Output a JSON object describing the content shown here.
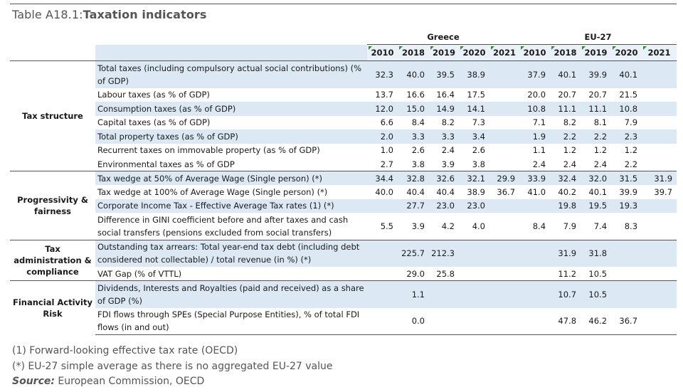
{
  "table_title_prefix": "Table A18.1:",
  "table_title": "Taxation indicators",
  "groups": [
    "Greece",
    "EU-27"
  ],
  "years": [
    "2010",
    "2018",
    "2019",
    "2020",
    "2021",
    "2010",
    "2018",
    "2019",
    "2020",
    "2021"
  ],
  "sections": [
    {
      "label": "Tax structure",
      "rows": [
        {
          "indicator": "Total taxes (including compulsory actual social contributions) (% of GDP)",
          "values": [
            "32.3",
            "40.0",
            "39.5",
            "38.9",
            "",
            "37.9",
            "40.1",
            "39.9",
            "40.1",
            ""
          ]
        },
        {
          "indicator": "Labour taxes (as % of GDP)",
          "values": [
            "13.7",
            "16.6",
            "16.4",
            "17.5",
            "",
            "20.0",
            "20.7",
            "20.7",
            "21.5",
            ""
          ]
        },
        {
          "indicator": "Consumption taxes (as % of GDP)",
          "values": [
            "12.0",
            "15.0",
            "14.9",
            "14.1",
            "",
            "10.8",
            "11.1",
            "11.1",
            "10.8",
            ""
          ]
        },
        {
          "indicator": "Capital taxes (as % of GDP)",
          "values": [
            "6.6",
            "8.4",
            "8.2",
            "7.3",
            "",
            "7.1",
            "8.2",
            "8.1",
            "7.9",
            ""
          ]
        },
        {
          "indicator": "Total property taxes (as % of GDP)",
          "values": [
            "2.0",
            "3.3",
            "3.3",
            "3.4",
            "",
            "1.9",
            "2.2",
            "2.2",
            "2.3",
            ""
          ]
        },
        {
          "indicator": "Recurrent taxes on immovable property (as % of GDP)",
          "values": [
            "1.0",
            "2.6",
            "2.4",
            "2.6",
            "",
            "1.1",
            "1.2",
            "1.2",
            "1.2",
            ""
          ]
        },
        {
          "indicator": "Environmental taxes as % of GDP",
          "values": [
            "2.7",
            "3.8",
            "3.9",
            "3.8",
            "",
            "2.4",
            "2.4",
            "2.4",
            "2.2",
            ""
          ]
        }
      ]
    },
    {
      "label": "Progressivity & fairness",
      "rows": [
        {
          "indicator": "Tax wedge at 50% of Average Wage (Single person) (*)",
          "values": [
            "34.4",
            "32.8",
            "32.6",
            "32.1",
            "29.9",
            "33.9",
            "32.4",
            "32.0",
            "31.5",
            "31.9"
          ]
        },
        {
          "indicator": "Tax wedge at 100% of Average Wage (Single person) (*)",
          "values": [
            "40.0",
            "40.4",
            "40.4",
            "38.9",
            "36.7",
            "41.0",
            "40.2",
            "40.1",
            "39.9",
            "39.7"
          ]
        },
        {
          "indicator": "Corporate Income Tax - Effective Average Tax rates (1) (*)",
          "values": [
            "",
            "27.7",
            "23.0",
            "23.0",
            "",
            "",
            "19.8",
            "19.5",
            "19.3",
            ""
          ]
        },
        {
          "indicator": "Difference in GINI coefficient before and after taxes and cash social transfers (pensions excluded from social transfers)",
          "values": [
            "5.5",
            "3.9",
            "4.2",
            "4.0",
            "",
            "8.4",
            "7.9",
            "7.4",
            "8.3",
            ""
          ]
        }
      ]
    },
    {
      "label": "Tax administration & compliance",
      "rows": [
        {
          "indicator": "Outstanding tax arrears: Total year-end tax debt (including debt considered not collectable) / total revenue (in %) (*)",
          "values": [
            "",
            "225.7",
            "212.3",
            "",
            "",
            "",
            "31.9",
            "31.8",
            "",
            ""
          ]
        },
        {
          "indicator": "VAT Gap (% of VTTL)",
          "values": [
            "",
            "29.0",
            "25.8",
            "",
            "",
            "",
            "11.2",
            "10.5",
            "",
            ""
          ]
        }
      ]
    },
    {
      "label": "Financial Activity Risk",
      "rows": [
        {
          "indicator": "Dividends, Interests and Royalties (paid and received) as a share of GDP (%)",
          "values": [
            "",
            "1.1",
            "",
            "",
            "",
            "",
            "10.7",
            "10.5",
            "",
            ""
          ]
        },
        {
          "indicator": "FDI flows through SPEs (Special Purpose Entities), % of total FDI flows (in and out)",
          "values": [
            "",
            "0.0",
            "",
            "",
            "",
            "",
            "47.8",
            "46.2",
            "36.7",
            ""
          ]
        }
      ]
    }
  ],
  "footnotes": {
    "note1": "(1)  Forward-looking effective tax rate (OECD)",
    "note2": "(*) EU-27 simple average as there is no aggregated EU-27 value",
    "source_label": "Source:",
    "source_text": " European Commission, OECD"
  }
}
